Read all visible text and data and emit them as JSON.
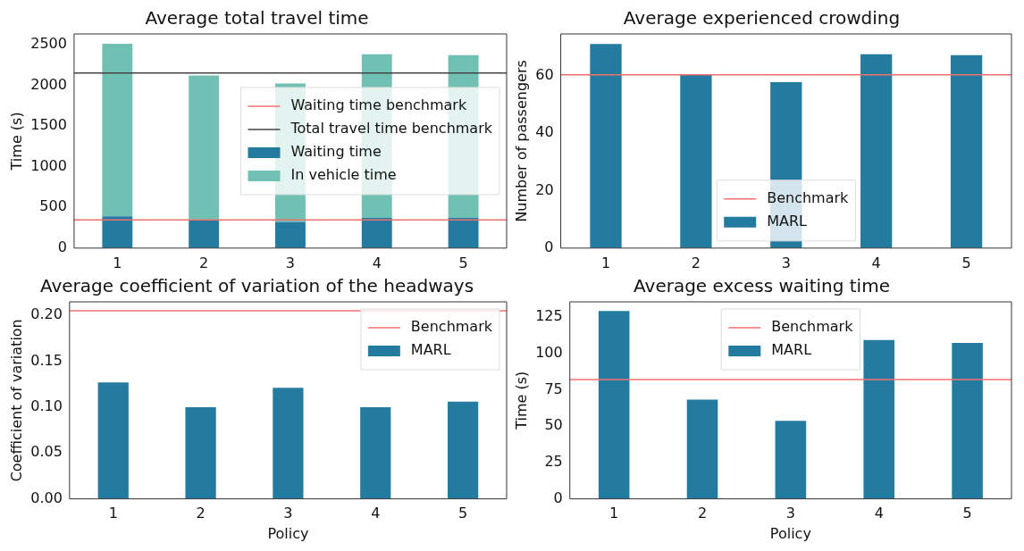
{
  "chart_data": [
    {
      "type": "bar",
      "title": "Average total travel time",
      "ylabel": "Time (s)",
      "categories": [
        "1",
        "2",
        "3",
        "4",
        "5"
      ],
      "stacked": true,
      "series": [
        {
          "name": "Waiting time",
          "color": "#247ba0",
          "values": [
            390,
            340,
            320,
            370,
            370
          ]
        },
        {
          "name": "In vehicle time",
          "color": "#70c1b3",
          "values": [
            2120,
            1780,
            1700,
            2010,
            2000
          ]
        }
      ],
      "ref_lines": [
        {
          "axis": "y",
          "value": 345,
          "label": "Waiting time benchmark",
          "color": "#f07070"
        },
        {
          "axis": "y",
          "value": 2150,
          "label": "Total travel time benchmark",
          "color": "#444444"
        }
      ],
      "ylim": [
        0,
        2630
      ],
      "yticks": [
        0,
        500,
        1000,
        1500,
        2000,
        2500
      ],
      "grid": false,
      "legend": "center right"
    },
    {
      "type": "bar",
      "title": "Average experienced crowding",
      "ylabel": "Number of passengers",
      "categories": [
        "1",
        "2",
        "3",
        "4",
        "5"
      ],
      "series": [
        {
          "name": "MARL",
          "color": "#247ba0",
          "values": [
            71.1,
            60.4,
            57.8,
            67.5,
            67.2
          ]
        }
      ],
      "ref_lines": [
        {
          "axis": "y",
          "value": 60.4,
          "label": "Benchmark",
          "color": "#f07070"
        }
      ],
      "ylim": [
        0,
        74.6
      ],
      "yticks": [
        0,
        20,
        40,
        60
      ],
      "grid": false,
      "legend": "bottom"
    },
    {
      "type": "bar",
      "title": "Average coefficient of variation of the headways",
      "ylabel": "Coefficient of variation",
      "xlabel": "Policy",
      "categories": [
        "1",
        "2",
        "3",
        "4",
        "5"
      ],
      "series": [
        {
          "name": "MARL",
          "color": "#247ba0",
          "values": [
            0.127,
            0.1,
            0.121,
            0.1,
            0.106
          ]
        }
      ],
      "ref_lines": [
        {
          "axis": "y",
          "value": 0.2051,
          "label": "Benchmark",
          "color": "#f07070"
        }
      ],
      "ylim": [
        0,
        0.2148
      ],
      "yticks": [
        {
          "value": 0,
          "label": "0.00"
        },
        {
          "value": 0.05,
          "label": "0.05"
        },
        {
          "value": 0.1,
          "label": "0.10"
        },
        {
          "value": 0.15,
          "label": "0.15"
        },
        {
          "value": 0.2,
          "label": "0.20"
        }
      ],
      "grid": false,
      "legend": "top right"
    },
    {
      "type": "bar",
      "title": "Average excess waiting time",
      "ylabel": "Time (s)",
      "xlabel": "Policy",
      "categories": [
        "1",
        "2",
        "3",
        "4",
        "5"
      ],
      "series": [
        {
          "name": "MARL",
          "color": "#247ba0",
          "values": [
            129.2,
            68.2,
            53.6,
            109.2,
            107.2
          ]
        }
      ],
      "ref_lines": [
        {
          "axis": "y",
          "value": 82.1,
          "label": "Benchmark",
          "color": "#f07070"
        }
      ],
      "ylim": [
        0,
        135.5
      ],
      "yticks": [
        0,
        25,
        50,
        75,
        100,
        125
      ],
      "grid": false,
      "legend": "top"
    }
  ]
}
